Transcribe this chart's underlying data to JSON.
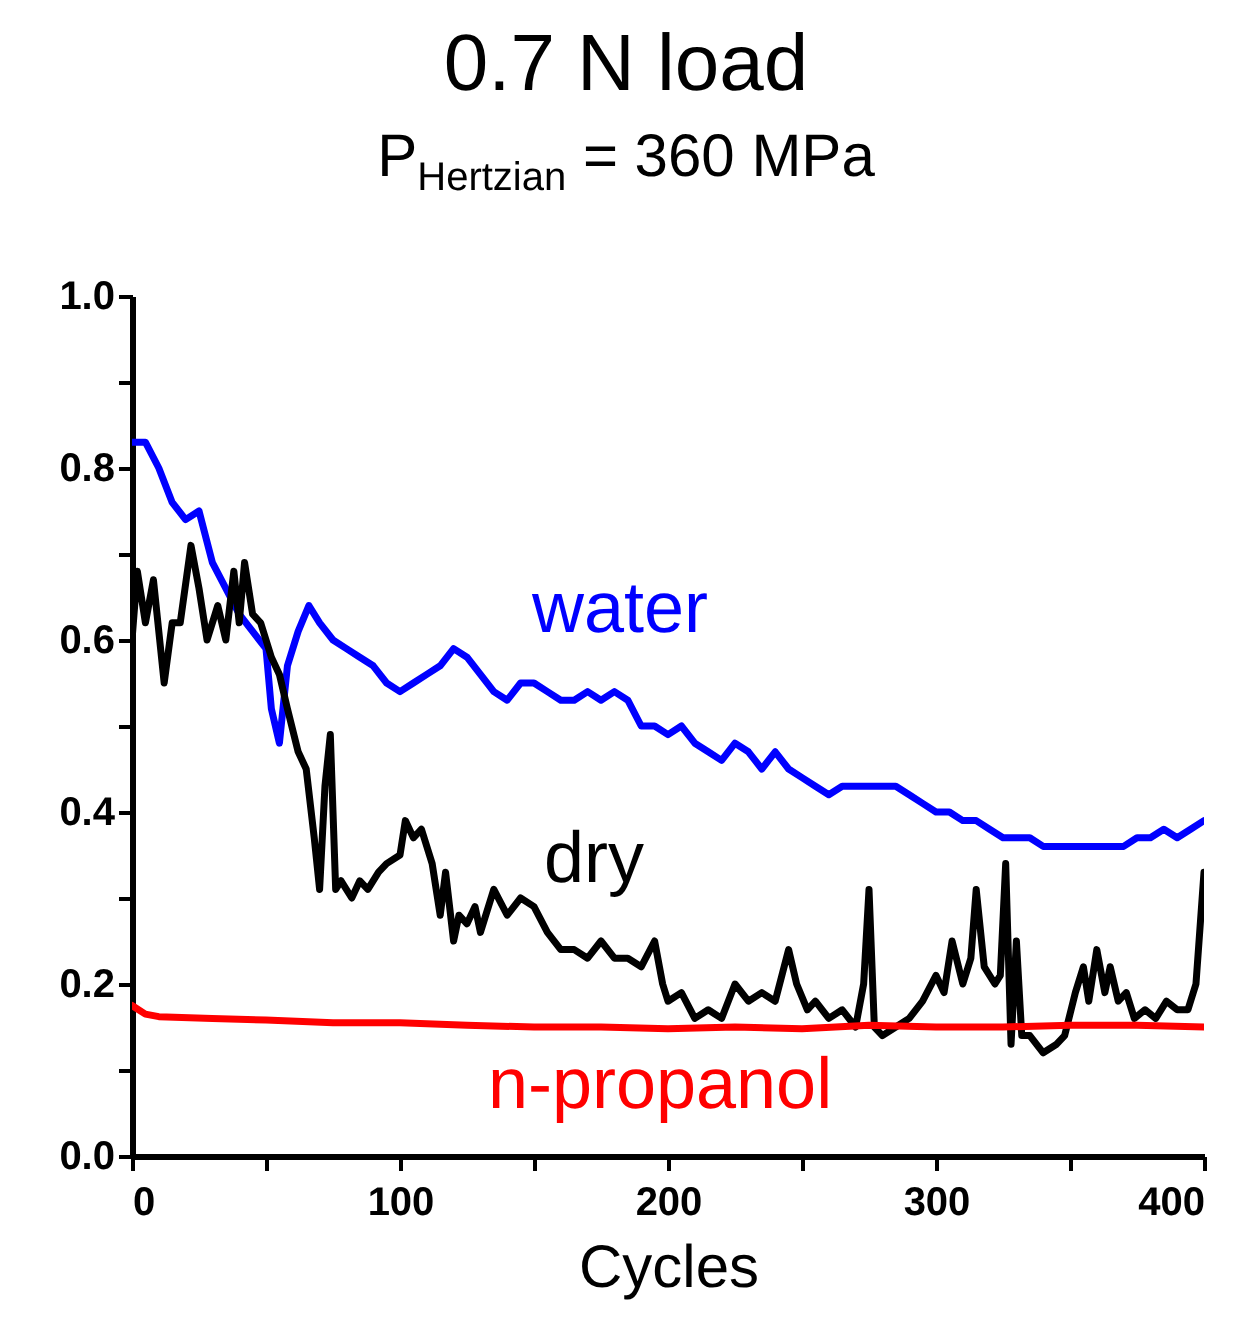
{
  "chart_data": {
    "type": "line",
    "title": "0.7 N load",
    "subtitle": "P$_{Hertzian}$ = 360 MPa",
    "xlabel": "Cycles",
    "xlim": [
      0,
      400
    ],
    "ylim": [
      0,
      1
    ],
    "xticks": [
      0,
      {
        "value": 50,
        "label": null
      },
      100,
      {
        "value": 150,
        "label": null
      },
      200,
      {
        "value": 250,
        "label": null
      },
      300,
      {
        "value": 350,
        "label": null
      },
      400
    ],
    "yticks": [
      {
        "value": 0,
        "label": "0.0"
      },
      {
        "value": 0.1,
        "label": null
      },
      {
        "value": 0.2,
        "label": "0.2"
      },
      {
        "value": 0.3,
        "label": null
      },
      {
        "value": 0.4,
        "label": "0.4"
      },
      {
        "value": 0.5,
        "label": null
      },
      {
        "value": 0.6,
        "label": "0.6"
      },
      {
        "value": 0.7,
        "label": null
      },
      {
        "value": 0.8,
        "label": "0.8"
      },
      {
        "value": 0.9,
        "label": null
      },
      {
        "value": 1,
        "label": "1.0"
      }
    ],
    "grid": false,
    "legend": false,
    "marker": "none",
    "line_style": "solid",
    "series": [
      {
        "name": "water",
        "color": "#0000ff",
        "x": [
          0,
          5,
          10,
          15,
          20,
          25,
          30,
          35,
          40,
          45,
          50,
          52,
          55,
          58,
          62,
          66,
          70,
          75,
          80,
          85,
          90,
          95,
          100,
          105,
          110,
          115,
          120,
          125,
          130,
          135,
          140,
          145,
          150,
          155,
          160,
          165,
          170,
          175,
          180,
          185,
          190,
          195,
          200,
          205,
          210,
          215,
          220,
          225,
          230,
          235,
          240,
          245,
          250,
          255,
          260,
          265,
          270,
          275,
          280,
          285,
          290,
          295,
          300,
          305,
          310,
          315,
          320,
          325,
          330,
          335,
          340,
          345,
          350,
          355,
          360,
          365,
          370,
          375,
          380,
          385,
          390,
          395,
          400
        ],
        "values": [
          0.83,
          0.83,
          0.8,
          0.76,
          0.74,
          0.75,
          0.69,
          0.66,
          0.63,
          0.61,
          0.59,
          0.52,
          0.48,
          0.57,
          0.61,
          0.64,
          0.62,
          0.6,
          0.59,
          0.58,
          0.57,
          0.55,
          0.54,
          0.55,
          0.56,
          0.57,
          0.59,
          0.58,
          0.56,
          0.54,
          0.53,
          0.55,
          0.55,
          0.54,
          0.53,
          0.53,
          0.54,
          0.53,
          0.54,
          0.53,
          0.5,
          0.5,
          0.49,
          0.5,
          0.48,
          0.47,
          0.46,
          0.48,
          0.47,
          0.45,
          0.47,
          0.45,
          0.44,
          0.43,
          0.42,
          0.43,
          0.43,
          0.43,
          0.43,
          0.43,
          0.42,
          0.41,
          0.4,
          0.4,
          0.39,
          0.39,
          0.38,
          0.37,
          0.37,
          0.37,
          0.36,
          0.36,
          0.36,
          0.36,
          0.36,
          0.36,
          0.36,
          0.37,
          0.37,
          0.38,
          0.37,
          0.38,
          0.39
        ]
      },
      {
        "name": "dry",
        "color": "#000000",
        "x": [
          0,
          2,
          5,
          8,
          12,
          15,
          18,
          22,
          25,
          28,
          32,
          35,
          38,
          40,
          42,
          45,
          48,
          52,
          55,
          58,
          62,
          65,
          68,
          70,
          72,
          74,
          76,
          78,
          82,
          85,
          88,
          92,
          95,
          100,
          102,
          105,
          108,
          112,
          115,
          117,
          120,
          122,
          125,
          128,
          130,
          135,
          140,
          145,
          150,
          155,
          160,
          165,
          170,
          175,
          180,
          185,
          190,
          195,
          198,
          200,
          205,
          210,
          215,
          220,
          225,
          230,
          235,
          240,
          245,
          248,
          252,
          255,
          260,
          265,
          270,
          273,
          275,
          277,
          280,
          285,
          290,
          295,
          300,
          303,
          306,
          310,
          313,
          315,
          318,
          322,
          324,
          326,
          328,
          330,
          332,
          335,
          340,
          345,
          348,
          352,
          355,
          357,
          360,
          363,
          365,
          368,
          371,
          374,
          378,
          382,
          386,
          390,
          394,
          397,
          400
        ],
        "values": [
          0.6,
          0.68,
          0.62,
          0.67,
          0.55,
          0.62,
          0.62,
          0.71,
          0.66,
          0.6,
          0.64,
          0.6,
          0.68,
          0.62,
          0.69,
          0.63,
          0.62,
          0.58,
          0.56,
          0.52,
          0.47,
          0.45,
          0.37,
          0.31,
          0.43,
          0.49,
          0.31,
          0.32,
          0.3,
          0.32,
          0.31,
          0.33,
          0.34,
          0.35,
          0.39,
          0.37,
          0.38,
          0.34,
          0.28,
          0.33,
          0.25,
          0.28,
          0.27,
          0.29,
          0.26,
          0.31,
          0.28,
          0.3,
          0.29,
          0.26,
          0.24,
          0.24,
          0.23,
          0.25,
          0.23,
          0.23,
          0.22,
          0.25,
          0.2,
          0.18,
          0.19,
          0.16,
          0.17,
          0.16,
          0.2,
          0.18,
          0.19,
          0.18,
          0.24,
          0.2,
          0.17,
          0.18,
          0.16,
          0.17,
          0.15,
          0.2,
          0.31,
          0.15,
          0.14,
          0.15,
          0.16,
          0.18,
          0.21,
          0.19,
          0.25,
          0.2,
          0.23,
          0.31,
          0.22,
          0.2,
          0.21,
          0.34,
          0.13,
          0.25,
          0.14,
          0.14,
          0.12,
          0.13,
          0.14,
          0.19,
          0.22,
          0.18,
          0.24,
          0.19,
          0.22,
          0.18,
          0.19,
          0.16,
          0.17,
          0.16,
          0.18,
          0.17,
          0.17,
          0.2,
          0.33
        ]
      },
      {
        "name": "n-propanol",
        "color": "#ff0000",
        "x": [
          0,
          5,
          10,
          30,
          50,
          75,
          100,
          125,
          150,
          175,
          200,
          225,
          250,
          275,
          300,
          325,
          350,
          375,
          400
        ],
        "values": [
          0.175,
          0.165,
          0.162,
          0.16,
          0.158,
          0.155,
          0.155,
          0.152,
          0.15,
          0.15,
          0.148,
          0.15,
          0.148,
          0.152,
          0.15,
          0.15,
          0.152,
          0.152,
          0.15
        ]
      }
    ]
  }
}
